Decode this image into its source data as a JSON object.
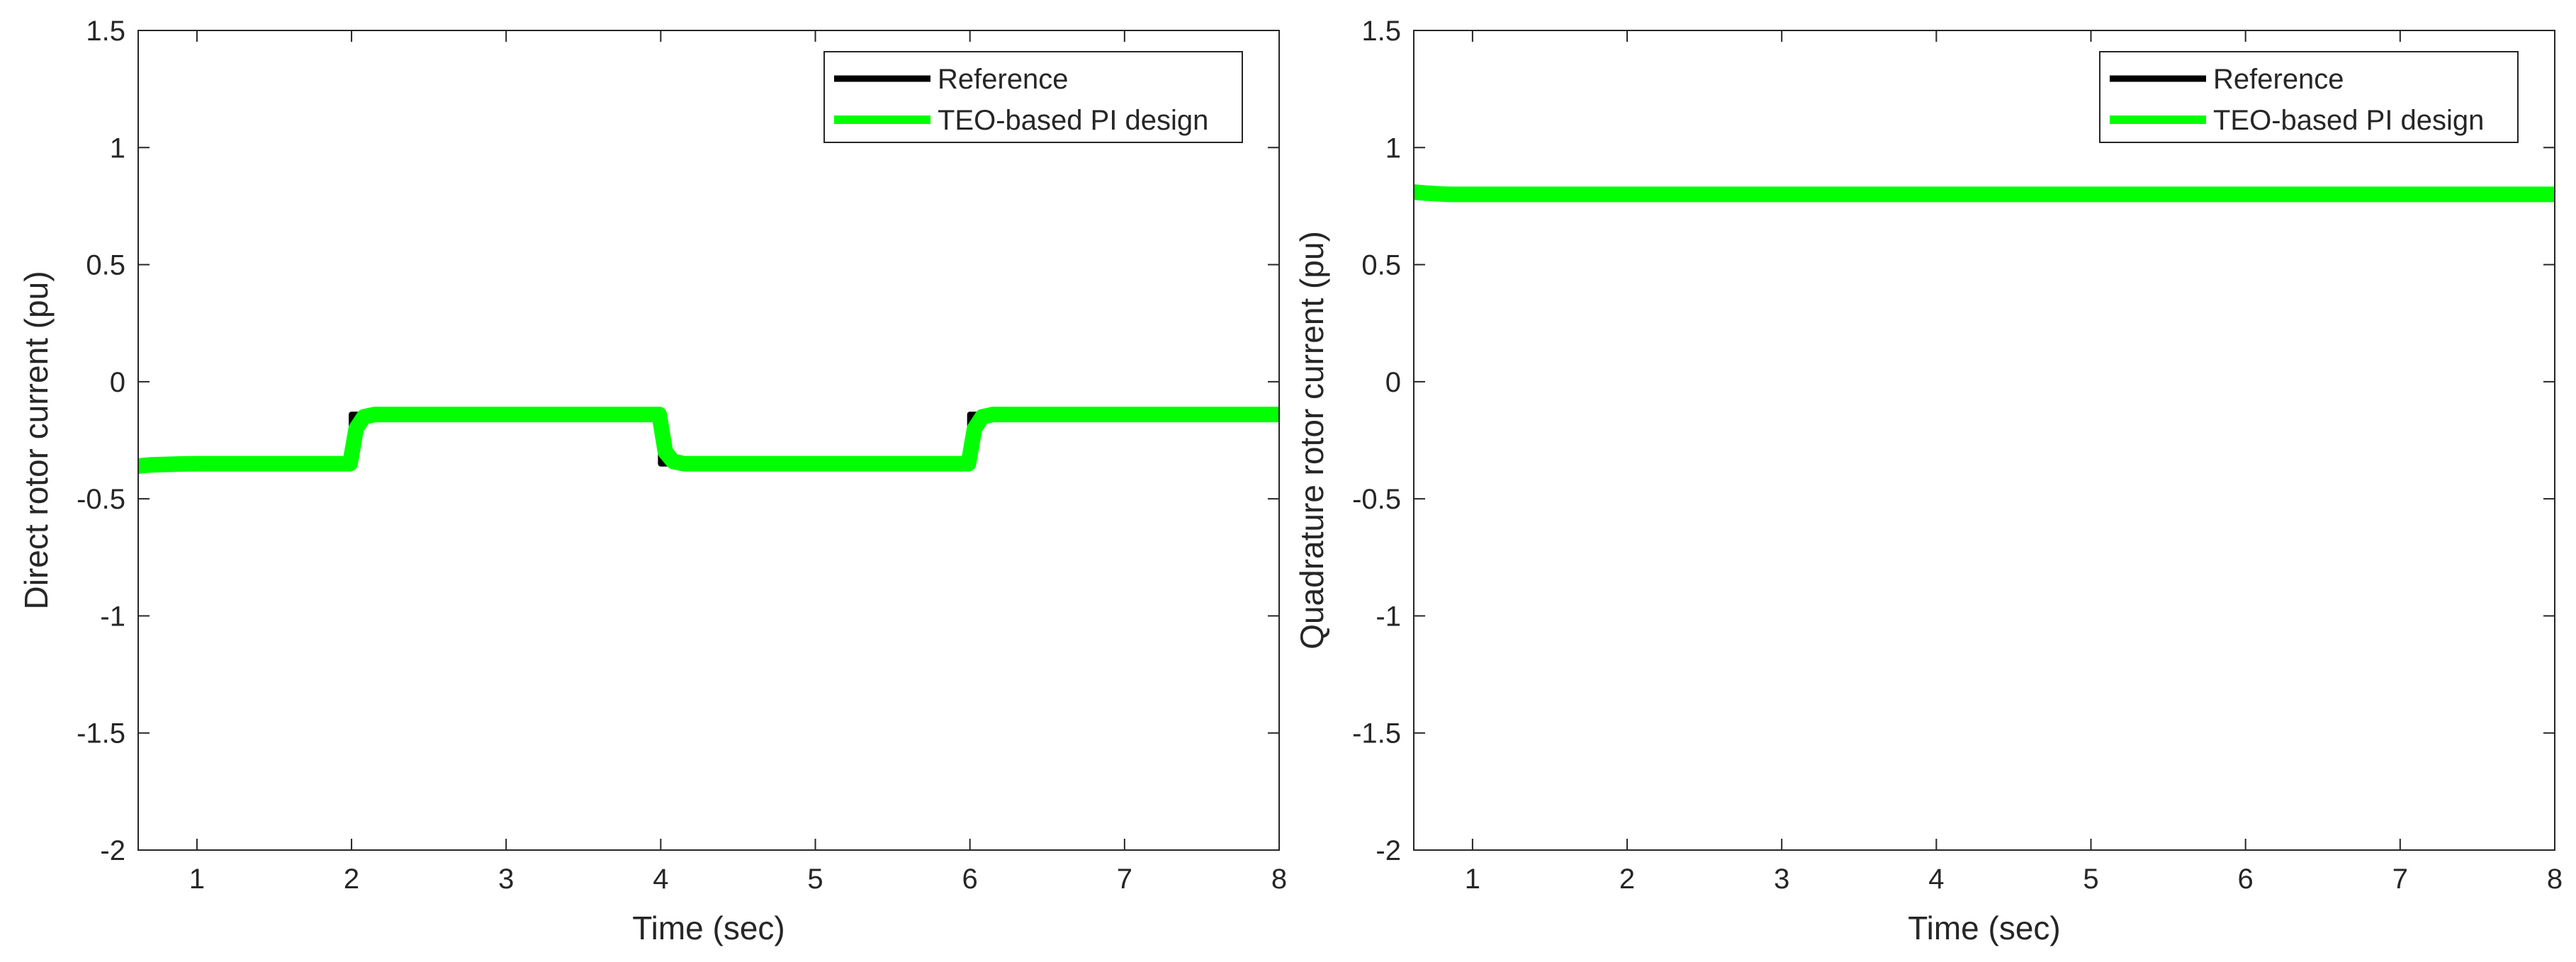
{
  "chart_data": [
    {
      "type": "line",
      "title": "",
      "xlabel": "Time (sec)",
      "ylabel": "Direct rotor current (pu)",
      "xlim": [
        0.62,
        8.0
      ],
      "ylim": [
        -2,
        1.5
      ],
      "xticks": [
        1,
        2,
        3,
        4,
        5,
        6,
        7,
        8
      ],
      "yticks": [
        1.5,
        1,
        0.5,
        0,
        -0.5,
        -1,
        -1.5,
        -2
      ],
      "ytick_labels": [
        "1.5",
        "1",
        "0.5",
        "0",
        "-0.5",
        "-1",
        "-1.5",
        "-2"
      ],
      "grid": false,
      "legend_position": "top-right",
      "series": [
        {
          "name": "Reference",
          "color": "#000000",
          "x": [
            0.62,
            2.0,
            2.0,
            4.0,
            4.0,
            6.0,
            6.0,
            8.0
          ],
          "y": [
            -0.35,
            -0.35,
            -0.14,
            -0.14,
            -0.35,
            -0.35,
            -0.14,
            -0.14
          ]
        },
        {
          "name": "TEO-based PI design",
          "color": "#00ff00",
          "x": [
            0.62,
            0.7,
            0.85,
            1.0,
            1.5,
            1.99,
            2.03,
            2.08,
            2.15,
            3.99,
            4.03,
            4.08,
            4.15,
            5.99,
            6.03,
            6.08,
            6.15,
            8.0
          ],
          "y": [
            -0.36,
            -0.355,
            -0.352,
            -0.35,
            -0.35,
            -0.35,
            -0.2,
            -0.15,
            -0.14,
            -0.14,
            -0.3,
            -0.34,
            -0.35,
            -0.35,
            -0.2,
            -0.15,
            -0.14,
            -0.14
          ]
        }
      ]
    },
    {
      "type": "line",
      "title": "",
      "xlabel": "Time (sec)",
      "ylabel": "Quadrature rotor current (pu)",
      "xlim": [
        0.62,
        8.0
      ],
      "ylim": [
        -2,
        1.5
      ],
      "xticks": [
        1,
        2,
        3,
        4,
        5,
        6,
        7,
        8
      ],
      "yticks": [
        1.5,
        1,
        0.5,
        0,
        -0.5,
        -1,
        -1.5,
        -2
      ],
      "ytick_labels": [
        "1.5",
        "1",
        "0.5",
        "0",
        "-0.5",
        "-1",
        "-1.5",
        "-2"
      ],
      "grid": false,
      "legend_position": "top-right",
      "series": [
        {
          "name": "Reference",
          "color": "#000000",
          "x": [
            0.62,
            8.0
          ],
          "y": [
            0.8,
            0.8
          ]
        },
        {
          "name": "TEO-based PI design",
          "color": "#00ff00",
          "x": [
            0.62,
            0.7,
            0.85,
            1.0,
            2.0,
            4.0,
            6.0,
            8.0
          ],
          "y": [
            0.81,
            0.805,
            0.8,
            0.8,
            0.8,
            0.8,
            0.8,
            0.8
          ]
        }
      ]
    }
  ]
}
